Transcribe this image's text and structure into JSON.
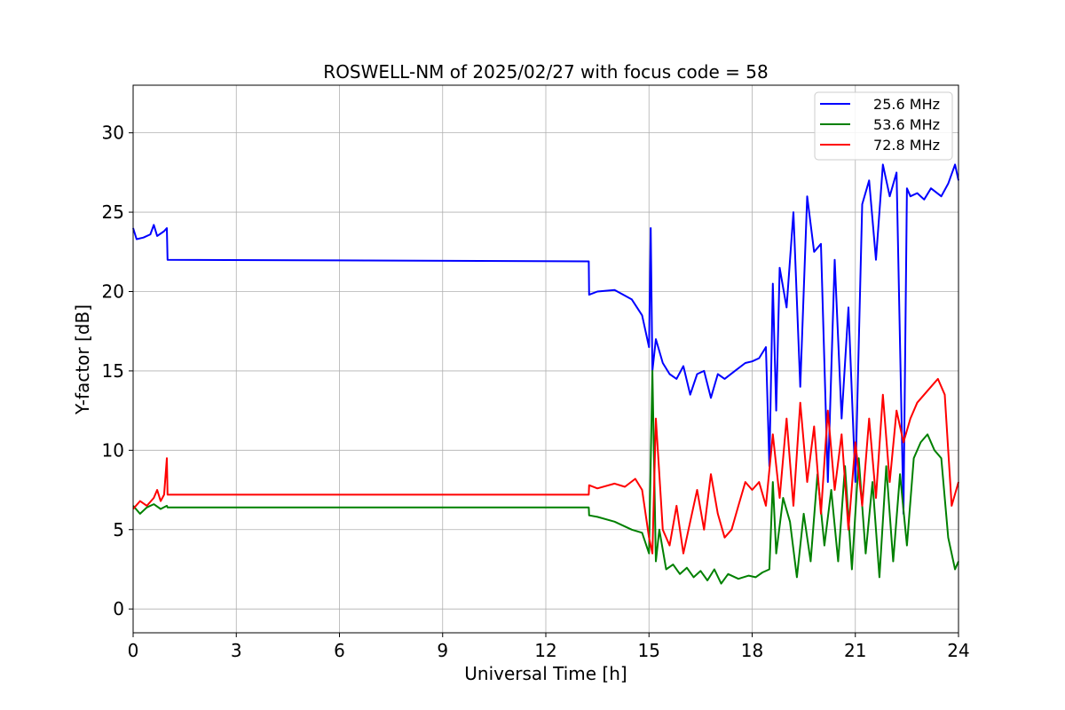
{
  "chart_data": {
    "type": "line",
    "title": "ROSWELL-NM of 2025/02/27 with focus code = 58",
    "xlabel": "Universal Time [h]",
    "ylabel": "Y-factor [dB]",
    "xlim": [
      0,
      24
    ],
    "ylim": [
      -1.5,
      33
    ],
    "xticks": [
      0,
      3,
      6,
      9,
      12,
      15,
      18,
      21,
      24
    ],
    "yticks": [
      0,
      5,
      10,
      15,
      20,
      25,
      30
    ],
    "grid": true,
    "legend_position": "top-right",
    "series": [
      {
        "name": "25.6 MHz",
        "color": "#0000ff",
        "x": [
          0,
          0.1,
          0.3,
          0.5,
          0.6,
          0.7,
          0.9,
          0.98,
          1.0,
          13.25,
          13.26,
          13.5,
          14.0,
          14.5,
          14.8,
          15.0,
          15.05,
          15.1,
          15.2,
          15.4,
          15.6,
          15.8,
          16.0,
          16.2,
          16.4,
          16.6,
          16.8,
          17.0,
          17.2,
          17.5,
          17.8,
          18.0,
          18.2,
          18.4,
          18.5,
          18.6,
          18.7,
          18.8,
          19.0,
          19.2,
          19.4,
          19.6,
          19.8,
          20.0,
          20.2,
          20.4,
          20.6,
          20.8,
          21.0,
          21.2,
          21.4,
          21.6,
          21.8,
          22.0,
          22.2,
          22.4,
          22.5,
          22.6,
          22.8,
          23.0,
          23.2,
          23.5,
          23.7,
          23.9,
          24.0
        ],
        "y": [
          24.0,
          23.3,
          23.4,
          23.6,
          24.2,
          23.5,
          23.8,
          24.0,
          22.0,
          21.9,
          19.8,
          20.0,
          20.1,
          19.5,
          18.5,
          16.5,
          24.0,
          15.0,
          17.0,
          15.5,
          14.8,
          14.5,
          15.3,
          13.5,
          14.8,
          15.0,
          13.3,
          14.8,
          14.5,
          15.0,
          15.5,
          15.6,
          15.8,
          16.5,
          9.0,
          20.5,
          12.5,
          21.5,
          19.0,
          25.0,
          14.0,
          26.0,
          22.5,
          23.0,
          8.0,
          22.0,
          12.0,
          19.0,
          8.0,
          25.5,
          27.0,
          22.0,
          28.0,
          26.0,
          27.5,
          6.0,
          26.5,
          26.0,
          26.2,
          25.8,
          26.5,
          26.0,
          26.8,
          28.0,
          27.0
        ]
      },
      {
        "name": "53.6 MHz",
        "color": "#008000",
        "x": [
          0,
          0.2,
          0.4,
          0.6,
          0.8,
          0.98,
          1.0,
          13.25,
          13.26,
          13.5,
          14.0,
          14.5,
          14.8,
          15.0,
          15.1,
          15.2,
          15.3,
          15.5,
          15.7,
          15.9,
          16.1,
          16.3,
          16.5,
          16.7,
          16.9,
          17.1,
          17.3,
          17.6,
          17.9,
          18.1,
          18.3,
          18.5,
          18.6,
          18.7,
          18.9,
          19.1,
          19.3,
          19.5,
          19.7,
          19.9,
          20.1,
          20.3,
          20.5,
          20.7,
          20.9,
          21.1,
          21.3,
          21.5,
          21.7,
          21.9,
          22.1,
          22.3,
          22.5,
          22.7,
          22.9,
          23.1,
          23.3,
          23.5,
          23.7,
          23.9,
          24.0
        ],
        "y": [
          6.5,
          6.0,
          6.4,
          6.6,
          6.3,
          6.5,
          6.4,
          6.4,
          5.9,
          5.8,
          5.5,
          5.0,
          4.8,
          3.5,
          15.0,
          3.0,
          5.0,
          2.5,
          2.8,
          2.2,
          2.6,
          2.0,
          2.4,
          1.8,
          2.5,
          1.6,
          2.2,
          1.9,
          2.1,
          2.0,
          2.3,
          2.5,
          8.0,
          3.5,
          7.0,
          5.5,
          2.0,
          6.0,
          3.0,
          8.5,
          4.0,
          7.5,
          3.0,
          9.0,
          2.5,
          9.5,
          3.5,
          8.0,
          2.0,
          9.0,
          3.0,
          8.5,
          4.0,
          9.5,
          10.5,
          11.0,
          10.0,
          9.5,
          4.5,
          2.5,
          3.0
        ]
      },
      {
        "name": "72.8 MHz",
        "color": "#ff0000",
        "x": [
          0,
          0.2,
          0.4,
          0.6,
          0.7,
          0.8,
          0.9,
          0.98,
          1.0,
          13.25,
          13.26,
          13.5,
          14.0,
          14.3,
          14.6,
          14.8,
          15.0,
          15.1,
          15.2,
          15.4,
          15.6,
          15.8,
          16.0,
          16.2,
          16.4,
          16.6,
          16.8,
          17.0,
          17.2,
          17.4,
          17.6,
          17.8,
          18.0,
          18.2,
          18.4,
          18.6,
          18.8,
          19.0,
          19.2,
          19.4,
          19.6,
          19.8,
          20.0,
          20.2,
          20.4,
          20.6,
          20.8,
          21.0,
          21.2,
          21.4,
          21.6,
          21.8,
          22.0,
          22.2,
          22.4,
          22.6,
          22.8,
          23.0,
          23.2,
          23.4,
          23.6,
          23.8,
          24.0
        ],
        "y": [
          6.3,
          6.8,
          6.5,
          7.0,
          7.5,
          6.8,
          7.2,
          9.5,
          7.2,
          7.2,
          7.8,
          7.6,
          7.9,
          7.7,
          8.2,
          7.5,
          4.5,
          3.5,
          12.0,
          5.0,
          4.0,
          6.5,
          3.5,
          5.5,
          7.5,
          5.0,
          8.5,
          6.0,
          4.5,
          5.0,
          6.5,
          8.0,
          7.5,
          8.0,
          6.5,
          11.0,
          7.0,
          12.0,
          6.5,
          13.0,
          8.0,
          11.5,
          6.0,
          12.5,
          7.5,
          11.0,
          5.0,
          10.5,
          6.5,
          12.0,
          7.0,
          13.5,
          8.0,
          12.5,
          10.5,
          12.0,
          13.0,
          13.5,
          14.0,
          14.5,
          13.5,
          6.5,
          8.0
        ]
      }
    ]
  }
}
